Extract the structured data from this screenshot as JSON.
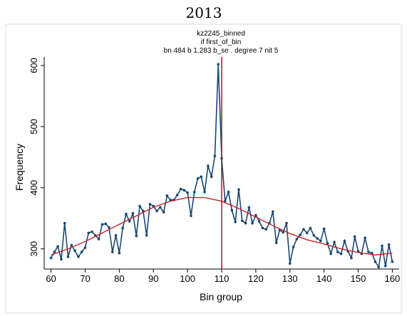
{
  "chart_data": {
    "type": "line",
    "title": "2013",
    "subtitle": [
      "kz2245_binned",
      "if first_of_bin",
      "bn 484 b 1.283 b_se . degree 7 nit 5"
    ],
    "xlabel": "Bin group",
    "ylabel": "Frequency",
    "xlim": [
      58,
      162
    ],
    "ylim": [
      267,
      614
    ],
    "xticks": [
      60,
      70,
      80,
      90,
      100,
      110,
      120,
      130,
      140,
      150,
      160
    ],
    "yticks": [
      300,
      400,
      500,
      600
    ],
    "vline": {
      "x": 110,
      "color": "#a8142e"
    },
    "series": [
      {
        "color": "#1a476f",
        "markers": true,
        "x": [
          60,
          61,
          62,
          63,
          64,
          65,
          66,
          67,
          68,
          69,
          70,
          71,
          72,
          73,
          74,
          75,
          76,
          77,
          78,
          79,
          80,
          81,
          82,
          83,
          84,
          85,
          86,
          87,
          88,
          89,
          90,
          91,
          92,
          93,
          94,
          95,
          96,
          97,
          98,
          99,
          100,
          101,
          102,
          103,
          104,
          105,
          106,
          107,
          108,
          109,
          110,
          111,
          112,
          113,
          114,
          115,
          116,
          117,
          118,
          119,
          120,
          121,
          122,
          123,
          124,
          125,
          126,
          127,
          128,
          129,
          130,
          131,
          132,
          133,
          134,
          135,
          136,
          137,
          138,
          139,
          140,
          141,
          142,
          143,
          144,
          145,
          146,
          147,
          148,
          149,
          150,
          151,
          152,
          153,
          154,
          155,
          156,
          157,
          158,
          159,
          160
        ],
        "values": [
          285,
          295,
          304,
          283,
          342,
          287,
          306,
          297,
          287,
          295,
          302,
          326,
          328,
          322,
          316,
          340,
          341,
          335,
          295,
          322,
          293,
          334,
          357,
          345,
          358,
          321,
          370,
          362,
          322,
          373,
          370,
          362,
          368,
          360,
          387,
          380,
          380,
          388,
          398,
          396,
          392,
          354,
          393,
          415,
          418,
          393,
          436,
          418,
          452,
          602,
          448,
          378,
          393,
          363,
          344,
          397,
          346,
          342,
          368,
          342,
          355,
          345,
          334,
          332,
          342,
          361,
          310,
          331,
          327,
          342,
          276,
          303,
          316,
          323,
          332,
          326,
          334,
          322,
          317,
          313,
          333,
          309,
          292,
          311,
          295,
          292,
          313,
          296,
          285,
          320,
          296,
          292,
          318,
          295,
          293,
          279,
          270,
          305,
          272,
          307,
          279
        ]
      },
      {
        "color": "#c0262d",
        "markers": false,
        "x": [
          60,
          65,
          70,
          75,
          80,
          85,
          90,
          95,
          100,
          105,
          110,
          115,
          120,
          125,
          130,
          135,
          140,
          145,
          150,
          155,
          160
        ],
        "values": [
          290,
          300,
          312,
          326,
          340,
          354,
          368,
          378,
          384,
          384,
          378,
          366,
          352,
          338,
          325,
          315,
          308,
          300,
          294,
          290,
          293
        ]
      }
    ]
  }
}
